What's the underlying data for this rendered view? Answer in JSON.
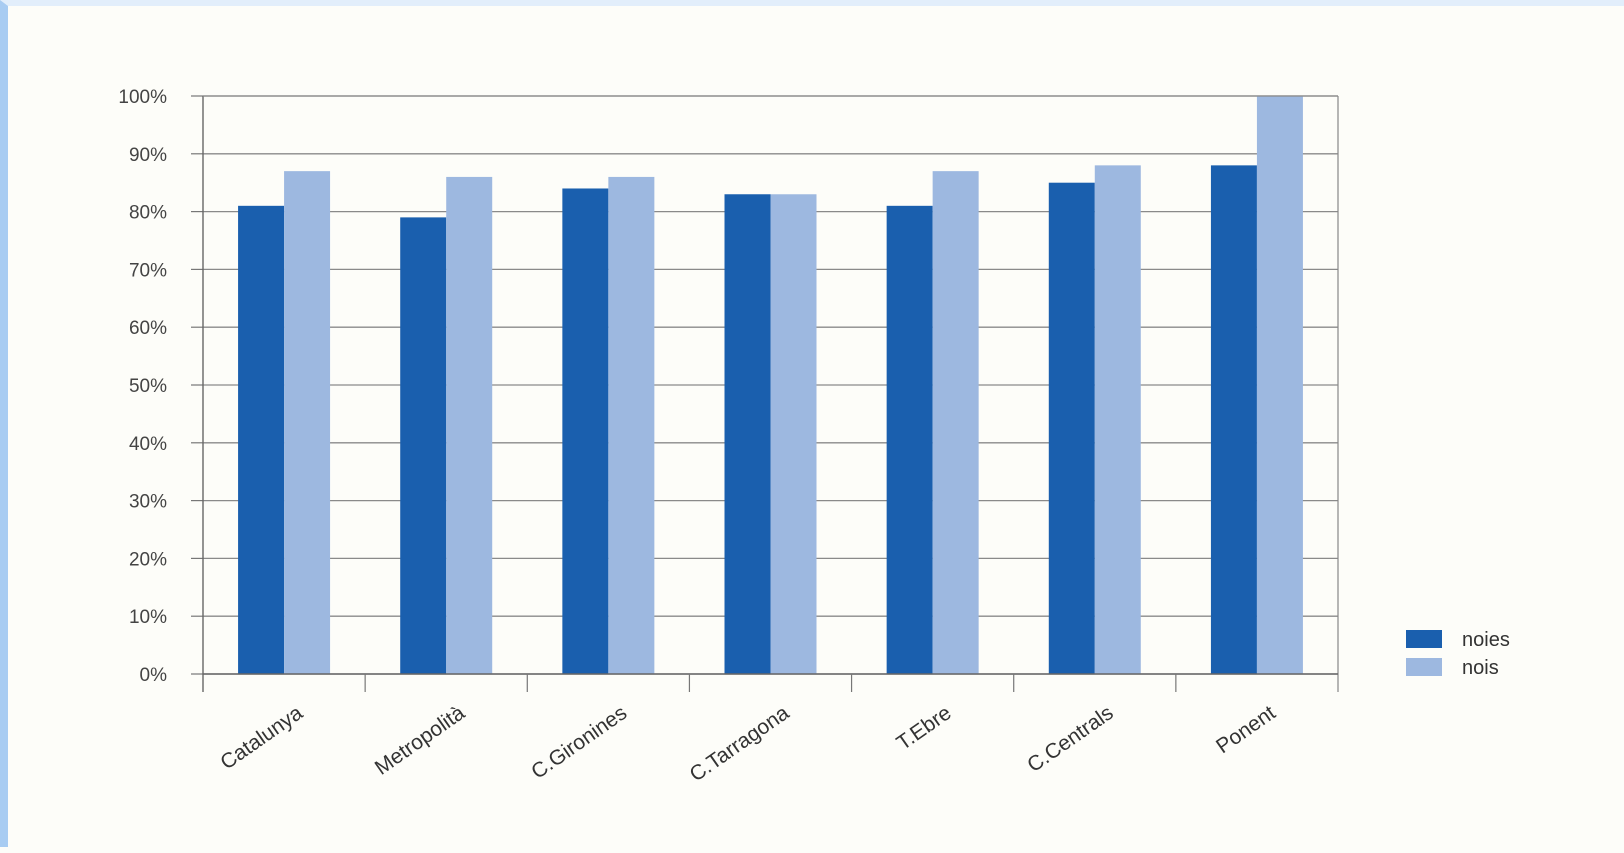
{
  "chart_data": {
    "type": "bar",
    "categories": [
      "Catalunya",
      "Metropolità",
      "C.Gironines",
      "C.Tarragona",
      "T.Ebre",
      "C.Centrals",
      "Ponent"
    ],
    "series": [
      {
        "name": "noies",
        "values": [
          81,
          79,
          84,
          83,
          81,
          85,
          88
        ],
        "color": "#1a5fae"
      },
      {
        "name": "nois",
        "values": [
          87,
          86,
          86,
          83,
          87,
          88,
          100
        ],
        "color": "#9db8e0"
      }
    ],
    "ylim": [
      0,
      100
    ],
    "yticks": [
      "0%",
      "10%",
      "20%",
      "30%",
      "40%",
      "50%",
      "60%",
      "70%",
      "80%",
      "90%",
      "100%"
    ],
    "ytick_values": [
      0,
      10,
      20,
      30,
      40,
      50,
      60,
      70,
      80,
      90,
      100
    ],
    "grid": true,
    "legend_position": "right"
  }
}
